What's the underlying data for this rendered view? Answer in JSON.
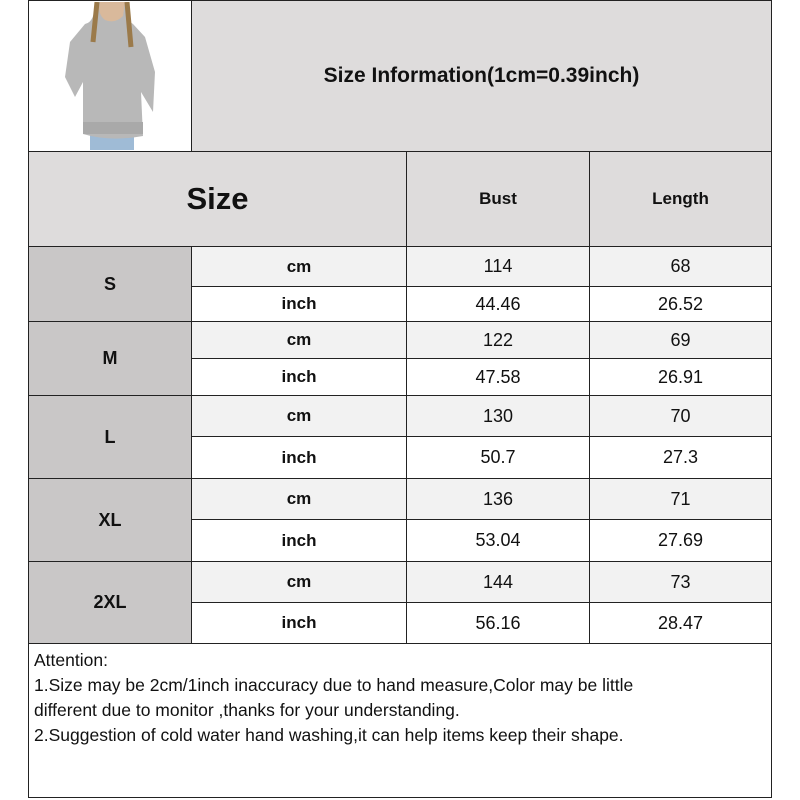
{
  "title": "Size Information(1cm=0.39inch)",
  "header": {
    "size": "Size",
    "bust": "Bust",
    "length": "Length"
  },
  "rows": [
    {
      "size": "S",
      "cm": {
        "unit": "cm",
        "bust": "114",
        "length": "68"
      },
      "inch": {
        "unit": "inch",
        "bust": "44.46",
        "length": "26.52"
      }
    },
    {
      "size": "M",
      "cm": {
        "unit": "cm",
        "bust": "122",
        "length": "69"
      },
      "inch": {
        "unit": "inch",
        "bust": "47.58",
        "length": "26.91"
      }
    },
    {
      "size": "L",
      "cm": {
        "unit": "cm",
        "bust": "130",
        "length": "70"
      },
      "inch": {
        "unit": "inch",
        "bust": "50.7",
        "length": "27.3"
      }
    },
    {
      "size": "XL",
      "cm": {
        "unit": "cm",
        "bust": "136",
        "length": "71"
      },
      "inch": {
        "unit": "inch",
        "bust": "53.04",
        "length": "27.69"
      }
    },
    {
      "size": "2XL",
      "cm": {
        "unit": "cm",
        "bust": "144",
        "length": "73"
      },
      "inch": {
        "unit": "inch",
        "bust": "56.16",
        "length": "28.47"
      }
    }
  ],
  "attention": {
    "heading": "Attention:",
    "lines": [
      "1.Size may be 2cm/1inch inaccuracy due to hand measure,Color may be little",
      "different due to monitor ,thanks for your understanding.",
      "2.Suggestion of cold water hand washing,it can help items keep their shape."
    ]
  },
  "colors": {
    "header_bg": "#dedcdc",
    "size_bg": "#c9c7c7",
    "cm_row_bg": "#f2f2f2",
    "inch_row_bg": "#ffffff"
  }
}
